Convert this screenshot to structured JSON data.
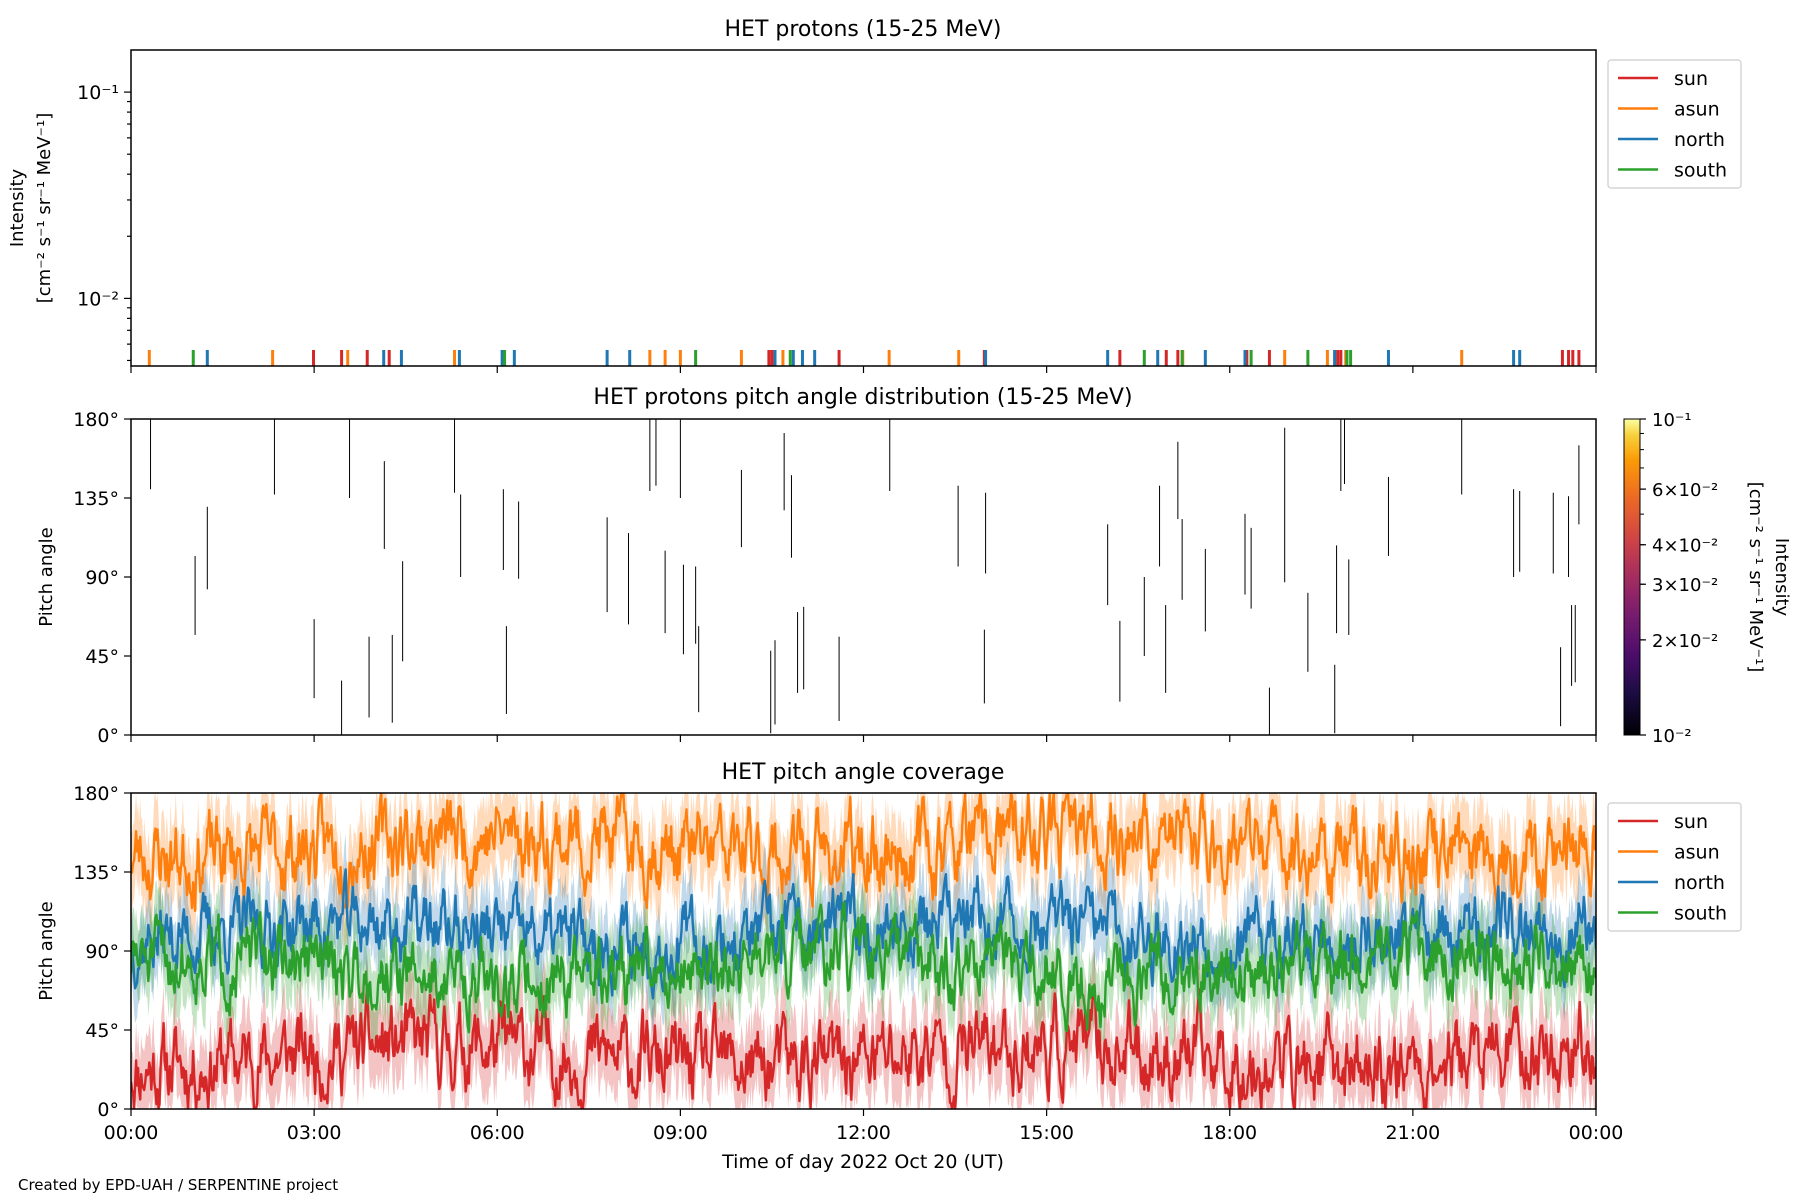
{
  "figure": {
    "credit": "Created by EPD-UAH / SERPENTINE project",
    "xlabel": "Time of day 2022 Oct 20 (UT)",
    "xticks": [
      "00:00",
      "03:00",
      "06:00",
      "09:00",
      "12:00",
      "15:00",
      "18:00",
      "21:00",
      "00:00"
    ],
    "xrange_hours": [
      0,
      24
    ]
  },
  "chart_data": [
    {
      "type": "line",
      "title": "HET protons (15-25 MeV)",
      "ylabel": [
        "Intensity",
        "[cm⁻² s⁻¹ sr⁻¹ MeV⁻¹]"
      ],
      "yscale": "log",
      "ylim": [
        0.0047,
        0.16
      ],
      "ytick_labels": [
        "10⁻¹",
        "10⁻²"
      ],
      "ytick_values": [
        0.1,
        0.01
      ],
      "legend": {
        "placement": "outside-right-top",
        "entries": [
          "sun",
          "asun",
          "north",
          "south"
        ]
      },
      "series": [
        {
          "name": "sun",
          "color": "#d62728",
          "x": [
            2.99,
            3.45,
            3.87,
            4.23,
            10.45,
            10.5,
            11.6,
            13.98,
            16.2,
            16.96,
            17.15,
            18.28,
            18.65,
            19.72,
            19.77,
            19.82,
            23.45,
            23.55,
            23.62,
            23.72
          ]
        },
        {
          "name": "asun",
          "color": "#ff7f0e",
          "x": [
            0.3,
            2.32,
            3.55,
            5.3,
            8.5,
            8.75,
            9.0,
            10.0,
            10.68,
            12.42,
            13.56,
            17.23,
            18.9,
            19.6,
            19.9,
            21.8
          ]
        },
        {
          "name": "north",
          "color": "#1f77b4",
          "x": [
            1.25,
            4.14,
            4.43,
            5.38,
            6.08,
            6.28,
            7.8,
            8.17,
            10.55,
            10.85,
            11.0,
            11.2,
            14.0,
            16.0,
            16.82,
            17.6,
            18.25,
            19.72,
            20.6,
            22.65,
            22.75
          ]
        },
        {
          "name": "south",
          "color": "#2ca02c",
          "x": [
            1.02,
            6.12,
            9.25,
            10.8,
            16.6,
            17.22,
            18.35,
            19.28,
            19.92,
            19.98
          ]
        }
      ]
    },
    {
      "type": "heatmap",
      "title": "HET protons pitch angle distribution (15-25 MeV)",
      "ylabel": "Pitch angle",
      "ylim": [
        0,
        180
      ],
      "ytick_labels": [
        "180°",
        "135°",
        "90°",
        "45°",
        "0°"
      ],
      "ytick_values": [
        180,
        135,
        90,
        45,
        0
      ],
      "colorbar": {
        "label": [
          "Intensity",
          "[cm⁻² s⁻¹ sr⁻¹ MeV⁻¹]"
        ],
        "scale": "log",
        "range": [
          0.01,
          0.1
        ],
        "tick_labels": [
          "10⁻¹",
          "6×10⁻²",
          "4×10⁻²",
          "3×10⁻²",
          "2×10⁻²",
          "10⁻²"
        ],
        "tick_values": [
          0.1,
          0.06,
          0.04,
          0.03,
          0.02,
          0.01
        ],
        "colormap": "inferno"
      },
      "segments": [
        [
          0.32,
          140,
          180
        ],
        [
          1.05,
          57,
          102
        ],
        [
          1.25,
          83,
          130
        ],
        [
          2.35,
          137,
          180
        ],
        [
          3.0,
          21,
          66
        ],
        [
          3.45,
          0,
          31
        ],
        [
          3.58,
          135,
          180
        ],
        [
          3.9,
          10,
          56
        ],
        [
          4.15,
          106,
          156
        ],
        [
          4.28,
          7,
          57
        ],
        [
          4.45,
          42,
          99
        ],
        [
          5.3,
          138,
          180
        ],
        [
          5.4,
          90,
          137
        ],
        [
          6.1,
          94,
          140
        ],
        [
          6.15,
          12,
          62
        ],
        [
          6.35,
          89,
          133
        ],
        [
          7.8,
          70,
          124
        ],
        [
          8.15,
          63,
          115
        ],
        [
          8.5,
          139,
          180
        ],
        [
          8.6,
          142,
          180
        ],
        [
          8.75,
          58,
          105
        ],
        [
          9.0,
          135,
          180
        ],
        [
          9.05,
          46,
          97
        ],
        [
          9.3,
          13,
          62
        ],
        [
          9.25,
          52,
          96
        ],
        [
          10.0,
          107,
          151
        ],
        [
          10.48,
          1,
          48
        ],
        [
          10.55,
          6,
          54
        ],
        [
          10.7,
          128,
          172
        ],
        [
          10.82,
          101,
          148
        ],
        [
          10.92,
          24,
          70
        ],
        [
          11.02,
          26,
          73
        ],
        [
          11.6,
          8,
          56
        ],
        [
          12.43,
          139,
          180
        ],
        [
          13.55,
          96,
          142
        ],
        [
          13.98,
          18,
          60
        ],
        [
          14.0,
          92,
          138
        ],
        [
          16.0,
          74,
          120
        ],
        [
          16.2,
          19,
          65
        ],
        [
          16.6,
          45,
          90
        ],
        [
          16.85,
          96,
          142
        ],
        [
          16.95,
          24,
          74
        ],
        [
          17.15,
          123,
          167
        ],
        [
          17.22,
          77,
          123
        ],
        [
          17.6,
          59,
          106
        ],
        [
          18.25,
          80,
          126
        ],
        [
          18.35,
          72,
          118
        ],
        [
          18.65,
          0,
          27
        ],
        [
          18.9,
          87,
          175
        ],
        [
          19.28,
          36,
          81
        ],
        [
          19.72,
          1,
          40
        ],
        [
          19.75,
          58,
          108
        ],
        [
          19.82,
          139,
          180
        ],
        [
          19.88,
          143,
          180
        ],
        [
          19.95,
          57,
          100
        ],
        [
          20.6,
          102,
          147
        ],
        [
          21.8,
          137,
          180
        ],
        [
          22.65,
          90,
          140
        ],
        [
          22.75,
          93,
          139
        ],
        [
          23.3,
          92,
          138
        ],
        [
          23.42,
          5,
          50
        ],
        [
          23.55,
          90,
          136
        ],
        [
          23.6,
          28,
          74
        ],
        [
          23.66,
          30,
          74
        ],
        [
          23.72,
          120,
          165
        ]
      ]
    },
    {
      "type": "area",
      "title": "HET pitch angle coverage",
      "ylabel": "Pitch angle",
      "ylim": [
        0,
        180
      ],
      "ytick_labels": [
        "180°",
        "135°",
        "90°",
        "45°",
        "0°"
      ],
      "ytick_values": [
        180,
        135,
        90,
        45,
        0
      ],
      "legend": {
        "placement": "outside-right-top",
        "entries": [
          "sun",
          "asun",
          "north",
          "south"
        ]
      },
      "series": [
        {
          "name": "sun",
          "color": "#d62728",
          "mean_deg": 30,
          "band_deg": 22,
          "jitter_deg": 16,
          "seed": 11
        },
        {
          "name": "asun",
          "color": "#ff7f0e",
          "mean_deg": 150,
          "band_deg": 22,
          "jitter_deg": 16,
          "seed": 23
        },
        {
          "name": "north",
          "color": "#1f77b4",
          "mean_deg": 100,
          "band_deg": 20,
          "jitter_deg": 14,
          "seed": 37
        },
        {
          "name": "south",
          "color": "#2ca02c",
          "mean_deg": 80,
          "band_deg": 20,
          "jitter_deg": 14,
          "seed": 51
        }
      ]
    }
  ]
}
